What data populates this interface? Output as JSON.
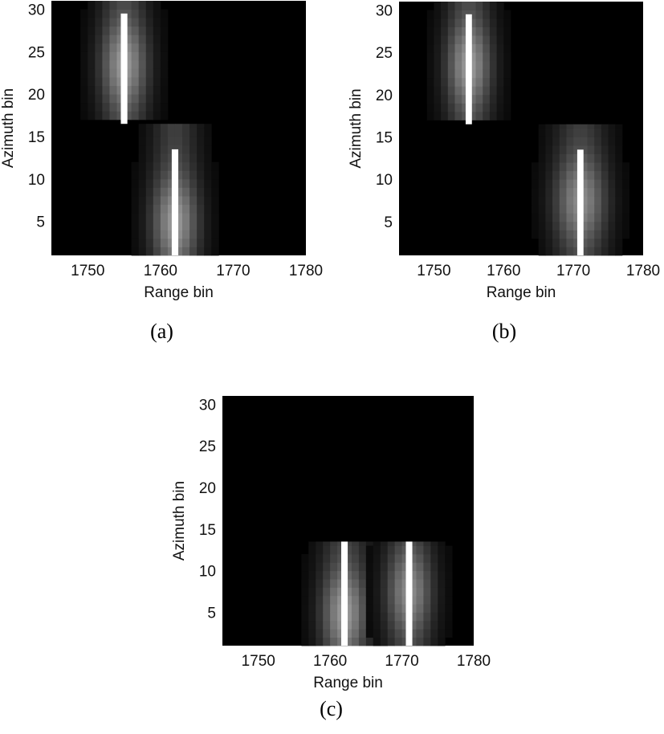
{
  "colors": {
    "background_cell": "#000000",
    "trace": "#ffffff",
    "figure_bg": "#ffffff",
    "text": "#111111"
  },
  "chart_data": [
    {
      "id": "a",
      "type": "heatmap",
      "caption": "(a)",
      "xlabel": "Range bin",
      "ylabel": "Azimuth bin",
      "xlim": [
        1745,
        1780
      ],
      "ylim": [
        1,
        31
      ],
      "xticks": [
        1750,
        1760,
        1770,
        1780
      ],
      "yticks": [
        5,
        10,
        15,
        20,
        25,
        30
      ],
      "colormap": "gray",
      "bands": [
        {
          "y_from": 16.5,
          "y_to": 31,
          "center_x": 1755,
          "halo_x": 1755.3,
          "halo_y": 23.5,
          "spread_x": 3,
          "spread_y": 4,
          "peak": 0.55
        },
        {
          "y_from": 1,
          "y_to": 16.5,
          "center_x": 1762,
          "halo_x": 1762.3,
          "halo_y": 5,
          "spread_x": 3,
          "spread_y": 4,
          "peak": 0.55
        }
      ],
      "traces": [
        {
          "x": 1755,
          "y_from": 16.5,
          "y_to": 29.5
        },
        {
          "x": 1762,
          "y_from": 1,
          "y_to": 13.5
        }
      ]
    },
    {
      "id": "b",
      "type": "heatmap",
      "caption": "(b)",
      "xlabel": "Range bin",
      "ylabel": "Azimuth bin",
      "xlim": [
        1745,
        1780
      ],
      "ylim": [
        1,
        31
      ],
      "xticks": [
        1750,
        1760,
        1770,
        1780
      ],
      "yticks": [
        5,
        10,
        15,
        20,
        25,
        30
      ],
      "colormap": "gray",
      "bands": [
        {
          "y_from": 16.5,
          "y_to": 31,
          "center_x": 1755,
          "halo_x": 1755.3,
          "halo_y": 23.5,
          "spread_x": 3,
          "spread_y": 4,
          "peak": 0.55
        },
        {
          "y_from": 1,
          "y_to": 16.5,
          "center_x": 1771,
          "halo_x": 1771.3,
          "halo_y": 7.5,
          "spread_x": 3.5,
          "spread_y": 4,
          "peak": 0.5
        }
      ],
      "traces": [
        {
          "x": 1755,
          "y_from": 16.5,
          "y_to": 29.5
        },
        {
          "x": 1771,
          "y_from": 1,
          "y_to": 13.5
        }
      ]
    },
    {
      "id": "c",
      "type": "heatmap",
      "caption": "(c)",
      "xlabel": "Range bin",
      "ylabel": "Azimuth bin",
      "xlim": [
        1745,
        1780
      ],
      "ylim": [
        1,
        31
      ],
      "xticks": [
        1750,
        1760,
        1770,
        1780
      ],
      "yticks": [
        5,
        10,
        15,
        20,
        25,
        30
      ],
      "colormap": "gray",
      "bands": [
        {
          "y_from": 1,
          "y_to": 13.5,
          "center_x": 1762,
          "halo_x": 1762.3,
          "halo_y": 5,
          "spread_x": 3,
          "spread_y": 4,
          "peak": 0.55
        },
        {
          "y_from": 1,
          "y_to": 13.5,
          "center_x": 1771,
          "halo_x": 1771.3,
          "halo_y": 7.5,
          "spread_x": 3,
          "spread_y": 4,
          "peak": 0.5
        }
      ],
      "traces": [
        {
          "x": 1762,
          "y_from": 1,
          "y_to": 13.5
        },
        {
          "x": 1771,
          "y_from": 1,
          "y_to": 13.5
        }
      ]
    }
  ]
}
